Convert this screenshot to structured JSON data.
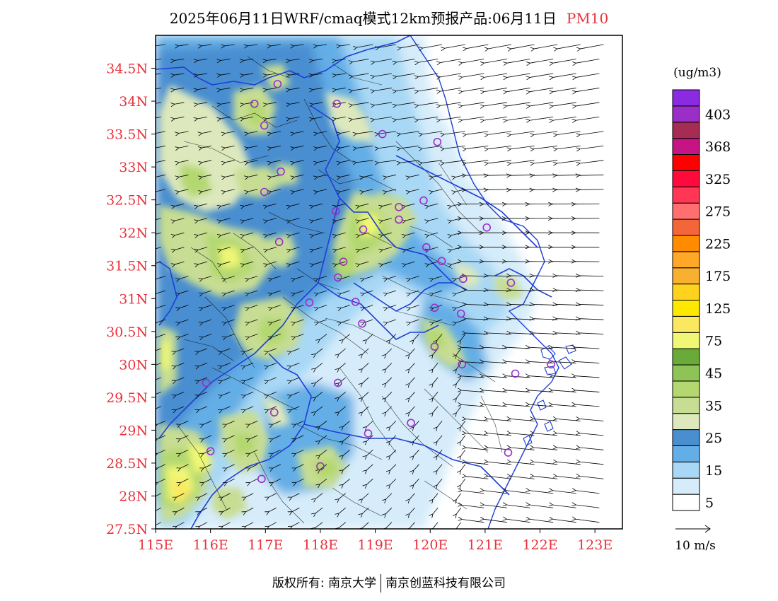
{
  "header": {
    "title": "2025年06月11日WRF/cmaq模式12km预报产品:06月11日",
    "variable": "PM10"
  },
  "map": {
    "lon_range": [
      115,
      123.5
    ],
    "lat_range": [
      27.5,
      35
    ],
    "lon_ticks": [
      "115E",
      "116E",
      "117E",
      "118E",
      "119E",
      "120E",
      "121E",
      "122E",
      "123E"
    ],
    "lat_ticks": [
      "27.5N",
      "28N",
      "28.5N",
      "29N",
      "29.5N",
      "30N",
      "30.5N",
      "31N",
      "31.5N",
      "32N",
      "32.5N",
      "33N",
      "33.5N",
      "34N",
      "34.5N"
    ],
    "tick_color": "#e8323c"
  },
  "colorbar": {
    "unit": "(ug/m3)",
    "colors": [
      "#ffffff",
      "#d6ecfa",
      "#a8d8f5",
      "#63aee6",
      "#4a8ed0",
      "#dde8bc",
      "#c7dd93",
      "#b4d86f",
      "#8ec455",
      "#6aaa38",
      "#eff774",
      "#fae860",
      "#ffe800",
      "#ffd21e",
      "#f8b030",
      "#ffa726",
      "#ff8c00",
      "#f4653a",
      "#ff6f6f",
      "#ff3755",
      "#ff0a3c",
      "#fe0000",
      "#c71484",
      "#a62c54",
      "#9b2ec8",
      "#8a2be2"
    ],
    "labels": [
      "5",
      "15",
      "25",
      "35",
      "45",
      "75",
      "125",
      "175",
      "225",
      "275",
      "325",
      "368",
      "403"
    ]
  },
  "wind": {
    "ref_label": "10 m/s"
  },
  "monitoring_sites": [
    [
      117.22,
      34.26
    ],
    [
      116.8,
      33.96
    ],
    [
      118.3,
      33.96
    ],
    [
      116.98,
      33.63
    ],
    [
      119.13,
      33.5
    ],
    [
      120.13,
      33.38
    ],
    [
      117.28,
      32.93
    ],
    [
      116.98,
      32.62
    ],
    [
      119.88,
      32.49
    ],
    [
      119.43,
      32.39
    ],
    [
      118.28,
      32.33
    ],
    [
      119.43,
      32.2
    ],
    [
      118.78,
      32.05
    ],
    [
      121.03,
      32.08
    ],
    [
      117.25,
      31.86
    ],
    [
      119.93,
      31.78
    ],
    [
      120.21,
      31.57
    ],
    [
      118.42,
      31.56
    ],
    [
      118.32,
      31.32
    ],
    [
      120.6,
      31.3
    ],
    [
      121.47,
      31.24
    ],
    [
      117.8,
      30.94
    ],
    [
      118.64,
      30.95
    ],
    [
      120.08,
      30.86
    ],
    [
      120.56,
      30.77
    ],
    [
      118.76,
      30.62
    ],
    [
      120.08,
      30.27
    ],
    [
      120.58,
      30.0
    ],
    [
      121.55,
      29.86
    ],
    [
      122.2,
      30.0
    ],
    [
      115.92,
      29.72
    ],
    [
      118.32,
      29.72
    ],
    [
      117.16,
      29.27
    ],
    [
      119.65,
      29.11
    ],
    [
      118.87,
      28.95
    ],
    [
      116.0,
      28.68
    ],
    [
      121.42,
      28.66
    ],
    [
      118.0,
      28.45
    ],
    [
      116.93,
      28.26
    ]
  ],
  "footer": {
    "copyright": "版权所有: 南京大学",
    "company": "南京创蓝科技有限公司"
  }
}
